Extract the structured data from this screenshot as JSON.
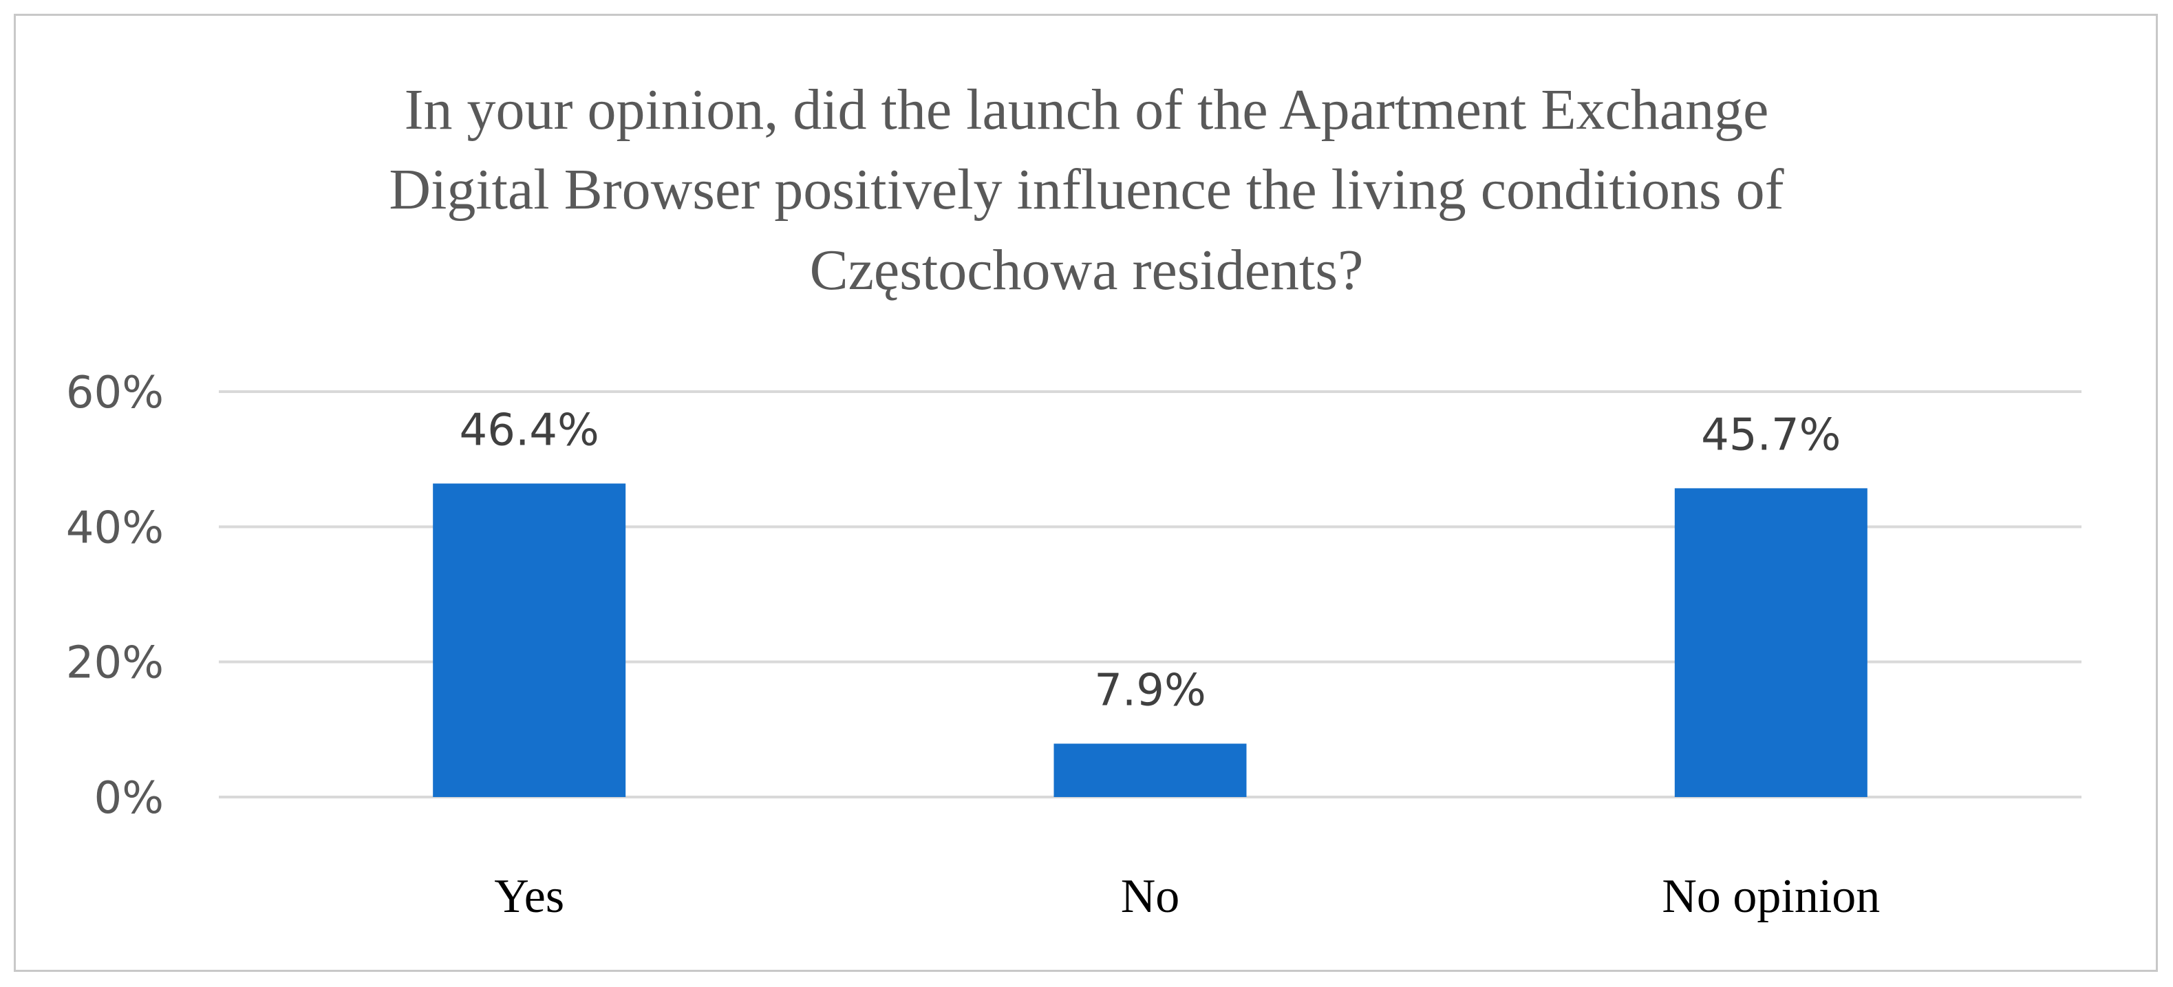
{
  "chart_data": {
    "type": "bar",
    "title": "In your opinion, did the launch of the Apartment Exchange Digital Browser positively influence the living conditions of Częstochowa residents?",
    "title_lines": [
      "In your opinion, did the launch of the Apartment Exchange",
      "Digital Browser positively influence the living conditions of",
      "Częstochowa residents?"
    ],
    "categories": [
      "Yes",
      "No",
      "No opinion"
    ],
    "values": [
      46.4,
      7.9,
      45.7
    ],
    "data_labels": [
      "46.4%",
      "7.9%",
      "45.7%"
    ],
    "xlabel": "",
    "ylabel": "",
    "ylim": [
      0,
      60
    ],
    "yticks": [
      0,
      20,
      40,
      60
    ],
    "ytick_labels": [
      "0%",
      "20%",
      "40%",
      "60%"
    ],
    "grid": true,
    "legend": "none",
    "bar_color": "#1570CC"
  }
}
